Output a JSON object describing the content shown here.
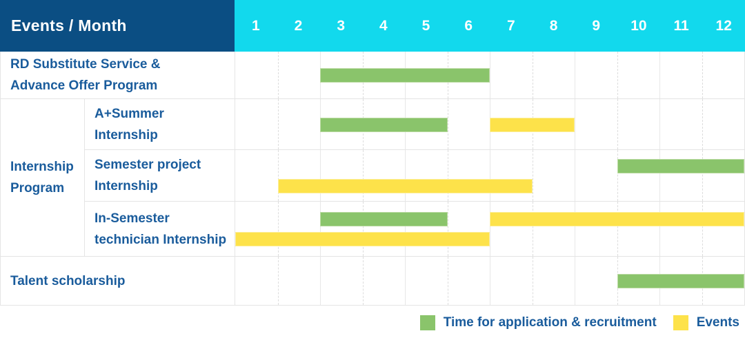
{
  "colors": {
    "header_bg": "#0b4e83",
    "months_bg": "#12d9ed",
    "header_text": "#ffffff",
    "label_text": "#1a5c9c",
    "grid_line": "#e4e4e4",
    "bar_green": "#8ac46b",
    "bar_green_border": "#bcdba4",
    "bar_yellow": "#fde24a",
    "bar_yellow_border": "#fcef9e"
  },
  "chart_data": {
    "type": "gantt",
    "title": "Events / Month",
    "x_axis": {
      "label": "Month",
      "ticks": [
        1,
        2,
        3,
        4,
        5,
        6,
        7,
        8,
        9,
        10,
        11,
        12
      ],
      "range": [
        1,
        12
      ]
    },
    "rows": [
      {
        "group": null,
        "label": "RD Substitute Service & Advance Offer Program",
        "lines": [
          "RD Substitute Service &",
          "Advance Offer Program"
        ],
        "bars": [
          {
            "type": "application",
            "start": 3,
            "end": 6,
            "lane": 1
          }
        ]
      },
      {
        "group": "Internship Program",
        "label": "A+Summer Internship",
        "lines": [
          "A+Summer",
          "Internship"
        ],
        "bars": [
          {
            "type": "application",
            "start": 3,
            "end": 5,
            "lane": 1
          },
          {
            "type": "event",
            "start": 7,
            "end": 8,
            "lane": 1
          }
        ]
      },
      {
        "group": "Internship Program",
        "label": "Semester project Internship",
        "lines": [
          "Semester project",
          "Internship"
        ],
        "bars": [
          {
            "type": "application",
            "start": 10,
            "end": 12,
            "lane": 1
          },
          {
            "type": "event",
            "start": 2,
            "end": 7,
            "lane": 2
          }
        ]
      },
      {
        "group": "Internship Program",
        "label": "In-Semester technician Internship",
        "lines": [
          "In-Semester",
          "technician Internship"
        ],
        "bars": [
          {
            "type": "application",
            "start": 3,
            "end": 5,
            "lane": 1
          },
          {
            "type": "event",
            "start": 7,
            "end": 12,
            "lane": 1
          },
          {
            "type": "event",
            "start": 1,
            "end": 6,
            "lane": 2
          }
        ]
      },
      {
        "group": null,
        "label": "Talent scholarship",
        "lines": [
          "Talent scholarship"
        ],
        "bars": [
          {
            "type": "application",
            "start": 10,
            "end": 12,
            "lane": 1
          }
        ]
      }
    ],
    "legend": [
      {
        "key": "application",
        "label": "Time for application & recruitment",
        "color": "#8ac46b"
      },
      {
        "key": "event",
        "label": "Events",
        "color": "#fde24a"
      }
    ],
    "layout_hints": {
      "grid": true,
      "legend_position": "bottom-right",
      "bar_unit": "inclusive months"
    }
  }
}
